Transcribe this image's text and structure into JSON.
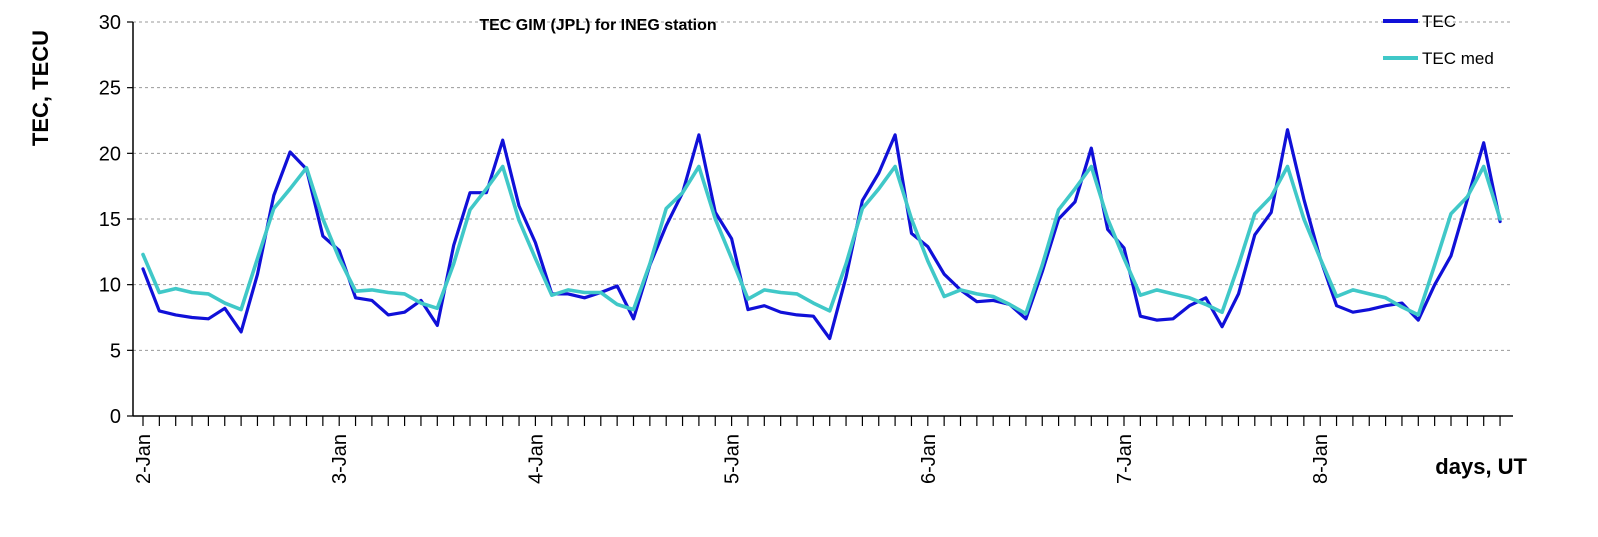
{
  "chart_data": {
    "type": "line",
    "title": "TEC GIM (JPL) for INEG station",
    "ylabel": "TEC, TECU",
    "xlabel": "days, UT",
    "ylim": [
      0,
      30
    ],
    "yticks": [
      0,
      5,
      10,
      15,
      20,
      25,
      30
    ],
    "y_grid": true,
    "legend_position": "top-right",
    "x_tick_labels": [
      "2-Jan",
      "3-Jan",
      "4-Jan",
      "5-Jan",
      "6-Jan",
      "7-Jan",
      "8-Jan"
    ],
    "samples_per_day": 12,
    "series": [
      {
        "name": "TEC",
        "color": "#1010d8",
        "values": [
          11.2,
          8.0,
          7.7,
          7.5,
          7.4,
          8.2,
          6.4,
          10.8,
          16.8,
          20.1,
          18.8,
          13.7,
          12.6,
          9.0,
          8.8,
          7.7,
          7.9,
          8.8,
          6.9,
          13.0,
          17.0,
          17.0,
          21.0,
          16.0,
          13.2,
          9.3,
          9.3,
          9.0,
          9.4,
          9.9,
          7.4,
          11.5,
          14.5,
          17.0,
          21.4,
          15.5,
          13.5,
          8.1,
          8.4,
          7.9,
          7.7,
          7.6,
          5.9,
          10.6,
          16.4,
          18.5,
          21.4,
          13.9,
          12.9,
          10.8,
          9.6,
          8.7,
          8.8,
          8.5,
          7.4,
          11.0,
          15.0,
          16.3,
          20.4,
          14.2,
          12.8,
          7.6,
          7.3,
          7.4,
          8.4,
          9.0,
          6.8,
          9.3,
          13.8,
          15.5,
          21.8,
          16.5,
          12.0,
          8.4,
          7.9,
          8.1,
          8.4,
          8.6,
          7.3,
          10.0,
          12.2,
          16.5,
          20.8,
          14.8
        ]
      },
      {
        "name": "TEC med",
        "color": "#40c8c8",
        "values": [
          12.3,
          9.4,
          9.7,
          9.4,
          9.3,
          8.6,
          8.1,
          12.0,
          15.8,
          17.3,
          18.9,
          15.0,
          12.0,
          9.5,
          9.6,
          9.4,
          9.3,
          8.6,
          8.2,
          11.6,
          15.7,
          17.3,
          19.0,
          14.9,
          12.0,
          9.2,
          9.6,
          9.4,
          9.4,
          8.5,
          8.1,
          11.6,
          15.8,
          17.0,
          19.0,
          15.0,
          12.0,
          8.9,
          9.6,
          9.4,
          9.3,
          8.6,
          8.0,
          11.6,
          15.8,
          17.3,
          19.0,
          15.0,
          11.8,
          9.1,
          9.6,
          9.3,
          9.1,
          8.5,
          7.8,
          11.5,
          15.7,
          17.3,
          19.0,
          15.0,
          12.0,
          9.2,
          9.6,
          9.3,
          9.0,
          8.5,
          7.9,
          11.5,
          15.4,
          16.7,
          19.0,
          15.0,
          12.0,
          9.1,
          9.6,
          9.3,
          9.0,
          8.3,
          7.7,
          11.5,
          15.4,
          16.7,
          19.0,
          15.0
        ]
      }
    ]
  }
}
